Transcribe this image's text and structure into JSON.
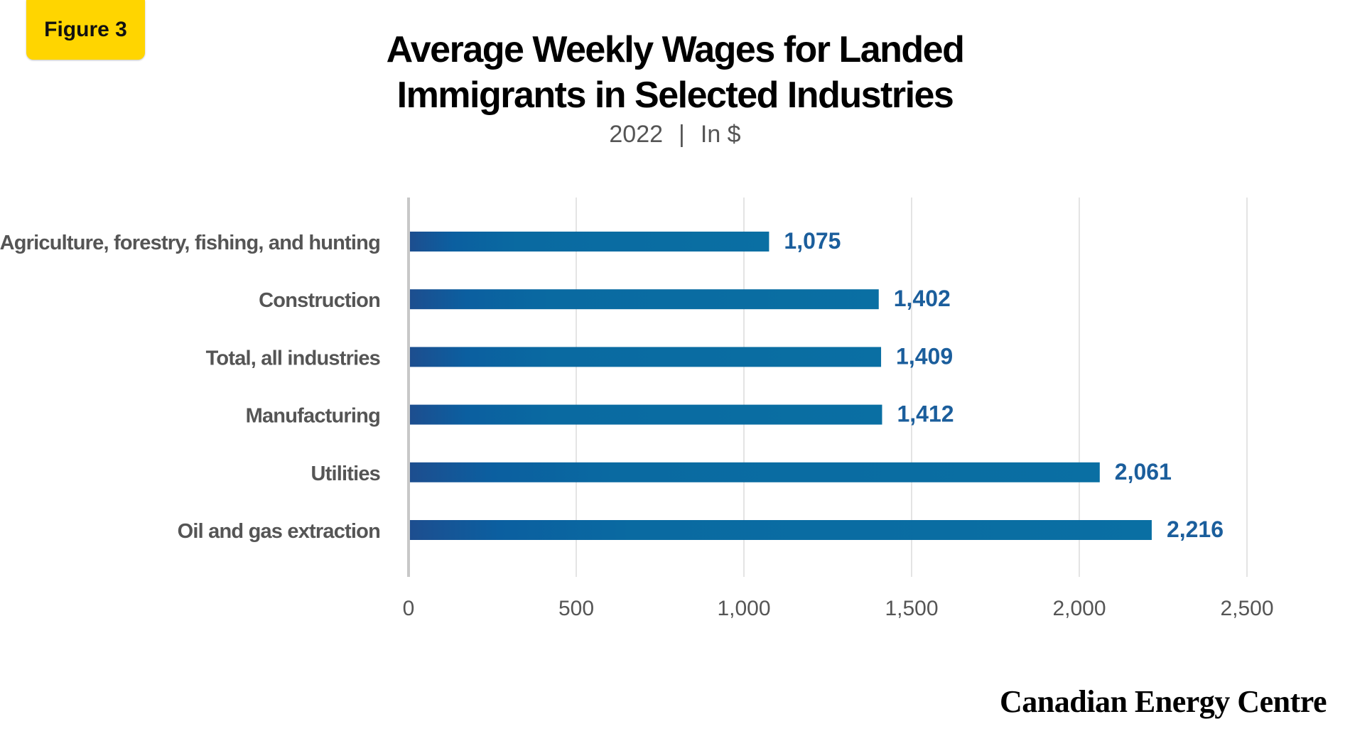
{
  "figure_label": "Figure 3",
  "title_line1": "Average Weekly Wages for Landed",
  "title_line2": "Immigrants in Selected Industries",
  "subtitle_year": "2022",
  "subtitle_separator": "|",
  "subtitle_unit": "In $",
  "brand": "Canadian Energy Centre",
  "colors": {
    "badge": "#ffd500",
    "bar": "#0a6aa1",
    "value_label": "#1b5e9c",
    "axis_text": "#555555",
    "grid": "#dcdcdc"
  },
  "chart_data": {
    "type": "bar",
    "orientation": "horizontal",
    "categories": [
      "Agriculture, forestry, fishing, and hunting",
      "Construction",
      "Total, all industries",
      "Manufacturing",
      "Utilities",
      "Oil and gas extraction"
    ],
    "values": [
      1075,
      1402,
      1409,
      1412,
      2061,
      2216
    ],
    "value_labels": [
      "1,075",
      "1,402",
      "1,409",
      "1,412",
      "2,061",
      "2,216"
    ],
    "xlim": [
      0,
      2500
    ],
    "xticks": [
      0,
      500,
      1000,
      1500,
      2000,
      2500
    ],
    "xtick_labels": [
      "0",
      "500",
      "1,000",
      "1,500",
      "2,000",
      "2,500"
    ],
    "grid": true
  }
}
